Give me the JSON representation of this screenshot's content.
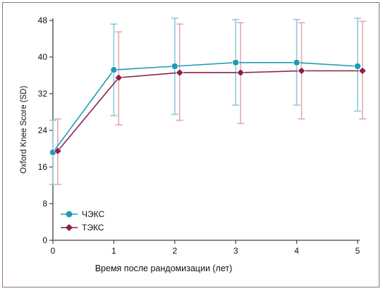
{
  "chart_data": {
    "type": "line",
    "title": "",
    "xlabel": "Время после рандомизации (лет)",
    "ylabel": "Oxford Knee Score (SD)",
    "xlim": [
      0,
      5
    ],
    "ylim": [
      0,
      48
    ],
    "x_ticks": [
      0,
      1,
      2,
      3,
      4,
      5
    ],
    "y_ticks": [
      0,
      8,
      16,
      24,
      32,
      40,
      48
    ],
    "grid": false,
    "legend_position": "bottom-left",
    "series": [
      {
        "name": "ЧЭКС",
        "color": "#1e9bb5",
        "error_color": "#8ccbd8",
        "marker": "circle",
        "x": [
          0,
          1,
          2,
          3,
          4,
          5
        ],
        "values": [
          19.2,
          37.2,
          38.0,
          38.8,
          38.8,
          38.0
        ],
        "err_low": [
          12.2,
          27.2,
          27.5,
          29.5,
          29.5,
          28.2
        ],
        "err_high": [
          26.2,
          47.2,
          48.5,
          48.2,
          48.2,
          48.5
        ]
      },
      {
        "name": "ТЭКС",
        "color": "#8c1f4f",
        "error_color": "#e3a9b2",
        "marker": "diamond",
        "x": [
          0.08,
          1.08,
          2.08,
          3.08,
          4.08,
          5.08
        ],
        "values": [
          19.5,
          35.5,
          36.6,
          36.6,
          37.0,
          37.0
        ],
        "err_low": [
          12.2,
          25.2,
          26.2,
          25.5,
          26.5,
          26.5
        ],
        "err_high": [
          26.5,
          45.5,
          47.2,
          47.5,
          47.5,
          47.8
        ]
      }
    ]
  }
}
